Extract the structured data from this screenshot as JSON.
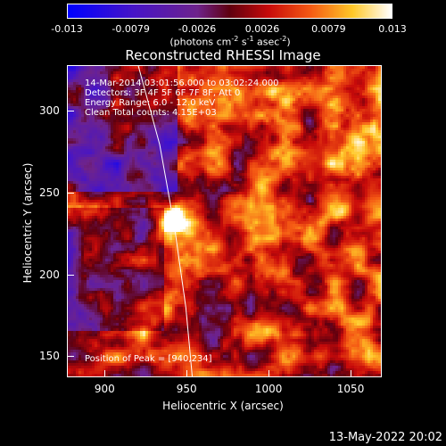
{
  "chart_data": {
    "type": "heatmap",
    "title": "Reconstructed RHESSI Image",
    "xlabel": "Heliocentric X (arcsec)",
    "ylabel": "Heliocentric Y (arcsec)",
    "xlim": [
      877,
      1069
    ],
    "ylim": [
      137,
      328
    ],
    "xticks": [
      "900",
      "950",
      "1000",
      "1050"
    ],
    "yticks": [
      "150",
      "200",
      "250",
      "300"
    ],
    "colorbar": {
      "ticks": [
        "-0.013",
        "-0.0079",
        "-0.0026",
        "0.0026",
        "0.0079",
        "0.013"
      ],
      "label_main": "(photons cm",
      "label_parts": [
        "-2",
        " s",
        "-1",
        " asec",
        "-2",
        ")"
      ],
      "range": [
        -0.013,
        0.013
      ]
    },
    "info_lines": [
      "14-Mar-2014 03:01:56.000 to 03:02:24.000",
      "Detectors: 3F 4F 5F 6F 7F 8F, Att 0",
      "Energy Range: 6.0 - 12.0 keV",
      "Clean    Total counts: 4.15E+03"
    ],
    "peak_text": "Position of Peak = [940,234]",
    "peak": [
      940,
      234
    ],
    "limb_points": [
      [
        920,
        328
      ],
      [
        933,
        280
      ],
      [
        942,
        230
      ],
      [
        949,
        180
      ],
      [
        953,
        137
      ]
    ]
  },
  "timestamp": "13-May-2022 20:02"
}
